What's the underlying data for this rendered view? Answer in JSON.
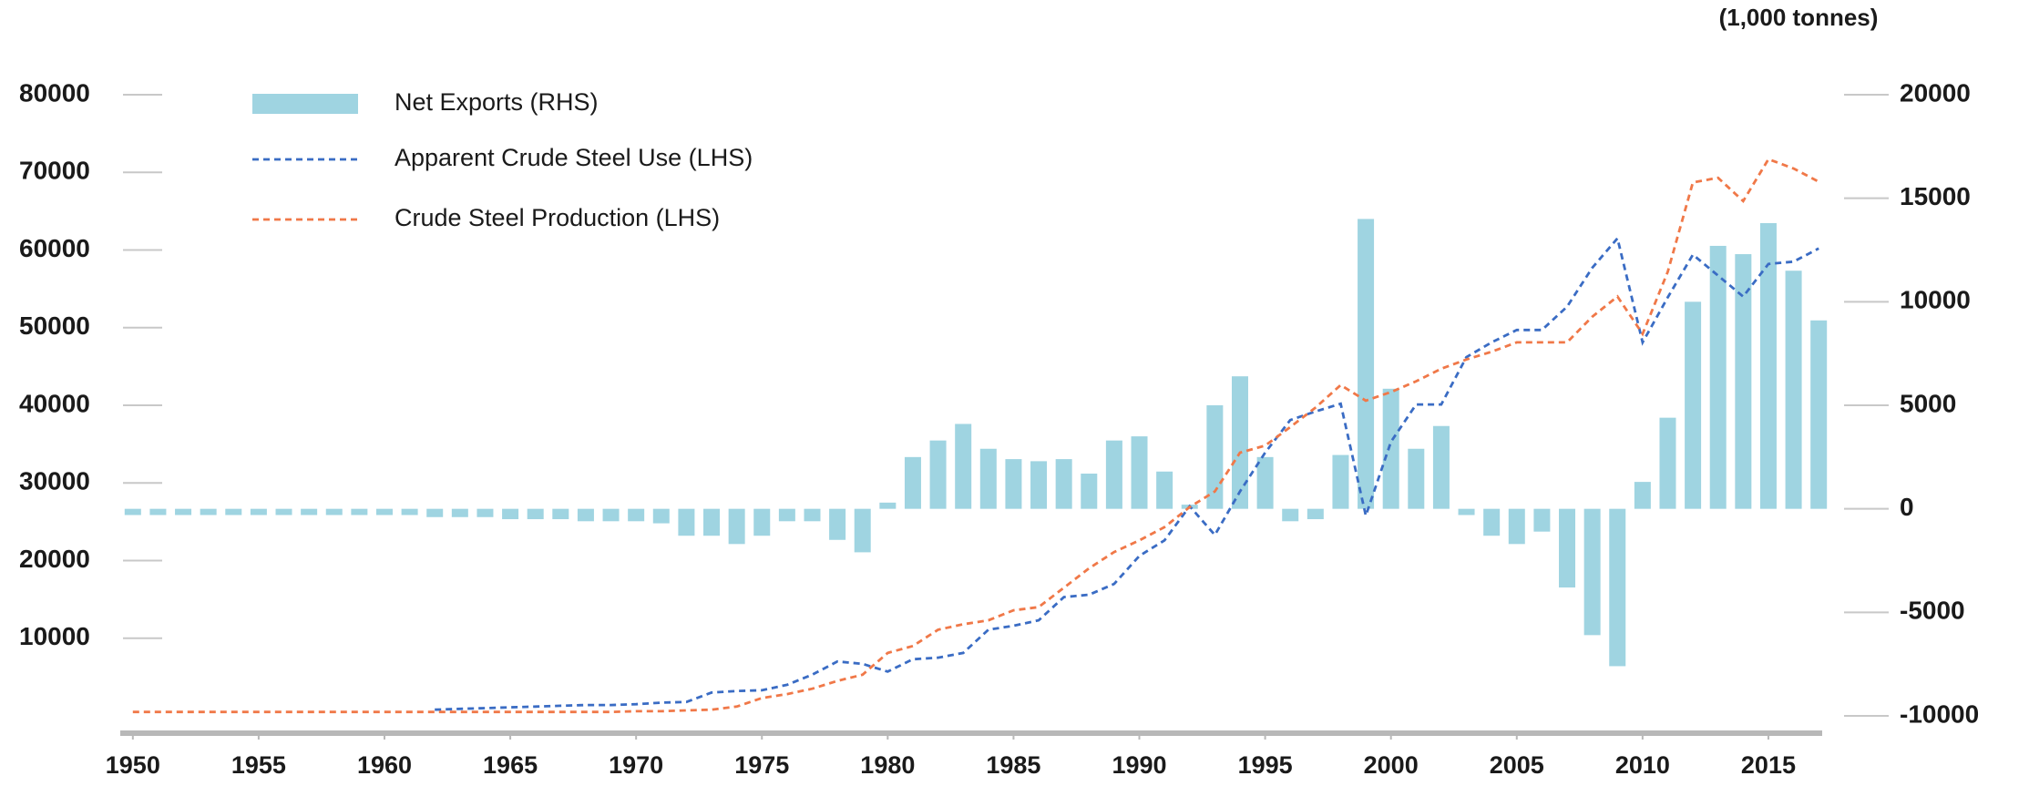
{
  "chart_data": {
    "type": "bar",
    "y2label": "(1,000 tonnes)",
    "x": [
      1950,
      1951,
      1952,
      1953,
      1954,
      1955,
      1956,
      1957,
      1958,
      1959,
      1960,
      1961,
      1962,
      1963,
      1964,
      1965,
      1966,
      1967,
      1968,
      1969,
      1970,
      1971,
      1972,
      1973,
      1974,
      1975,
      1976,
      1977,
      1978,
      1979,
      1980,
      1981,
      1982,
      1983,
      1984,
      1985,
      1986,
      1987,
      1988,
      1989,
      1990,
      1991,
      1992,
      1993,
      1994,
      1995,
      1996,
      1997,
      1998,
      1999,
      2000,
      2001,
      2002,
      2003,
      2004,
      2005,
      2006,
      2007,
      2008,
      2009,
      2010,
      2011,
      2012,
      2013,
      2014,
      2015,
      2016,
      2017
    ],
    "series": [
      {
        "name": "Net Exports (RHS)",
        "type": "bar",
        "axis": "y2",
        "color": "#9fd4e1",
        "values": [
          -300,
          -300,
          -300,
          -300,
          -300,
          -300,
          -300,
          -300,
          -300,
          -300,
          -300,
          -300,
          -400,
          -400,
          -400,
          -500,
          -500,
          -500,
          -600,
          -600,
          -600,
          -700,
          -1300,
          -1300,
          -1700,
          -1300,
          -600,
          -600,
          -1500,
          -2100,
          300,
          2500,
          3300,
          4100,
          2900,
          2400,
          2300,
          2400,
          1700,
          3300,
          3500,
          1800,
          200,
          5000,
          6400,
          2500,
          -600,
          -500,
          2600,
          14000,
          5800,
          2900,
          4000,
          -300,
          -1300,
          -1700,
          -1100,
          -3800,
          -6100,
          -7600,
          1300,
          4400,
          10000,
          12700,
          12300,
          13800,
          11500,
          9100
        ]
      },
      {
        "name": "Apparent Crude Steel Use (LHS)",
        "type": "line",
        "axis": "y",
        "color": "#3a6cc4",
        "dashed": true,
        "values": [
          null,
          null,
          null,
          null,
          null,
          null,
          null,
          null,
          null,
          null,
          null,
          null,
          800,
          900,
          1000,
          1100,
          1200,
          1300,
          1400,
          1400,
          1500,
          1700,
          1800,
          3000,
          3200,
          3300,
          4000,
          5300,
          7000,
          6700,
          5700,
          7300,
          7500,
          8100,
          11100,
          11600,
          12300,
          15300,
          15600,
          17000,
          20600,
          22600,
          27000,
          23300,
          28900,
          33900,
          38100,
          39200,
          40200,
          25800,
          35300,
          40100,
          40100,
          46200,
          48100,
          49700,
          49700,
          52700,
          57700,
          61500,
          48100,
          53900,
          59400,
          56700,
          54000,
          58200,
          58500,
          60200
        ]
      },
      {
        "name": "Crude Steel Production (LHS)",
        "type": "line",
        "axis": "y",
        "color": "#f07848",
        "dashed": true,
        "values": [
          500,
          500,
          500,
          500,
          500,
          500,
          500,
          500,
          500,
          500,
          500,
          500,
          500,
          500,
          500,
          500,
          500,
          500,
          500,
          500,
          600,
          600,
          700,
          800,
          1200,
          2300,
          2800,
          3500,
          4500,
          5300,
          8100,
          9000,
          11100,
          11800,
          12300,
          13600,
          14000,
          16500,
          19000,
          21100,
          22600,
          24300,
          26900,
          28900,
          33900,
          34800,
          37200,
          39700,
          42600,
          40600,
          41700,
          43100,
          44700,
          45900,
          46900,
          48100,
          48100,
          48100,
          51400,
          54000,
          49200,
          57200,
          68700,
          69300,
          66300,
          71700,
          70500,
          68800
        ]
      }
    ],
    "xlim": [
      1949.5,
      2017.5
    ],
    "xticks": [
      1950,
      1955,
      1960,
      1965,
      1970,
      1975,
      1980,
      1985,
      1990,
      1995,
      2000,
      2005,
      2010,
      2015
    ],
    "ylim": [
      0,
      80000
    ],
    "yticks": [
      10000,
      20000,
      30000,
      40000,
      50000,
      60000,
      70000,
      80000
    ],
    "y2lim": [
      -10000,
      20000
    ],
    "y2ticks": [
      -10000,
      -5000,
      0,
      5000,
      10000,
      15000,
      20000
    ],
    "legend": "upper left"
  }
}
